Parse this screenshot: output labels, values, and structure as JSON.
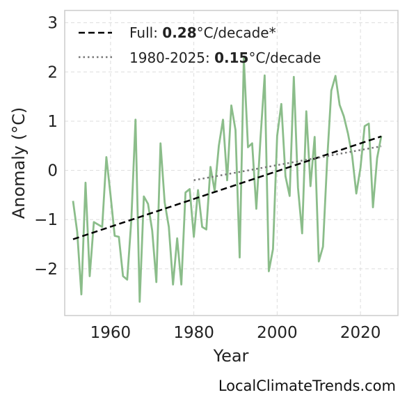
{
  "source": "LocalClimateTrends.com",
  "colors": {
    "series": "#8bbd8a",
    "full_trend": "#000000",
    "recent_trend": "#777777",
    "grid": "#dddddd",
    "frame": "#cccccc"
  },
  "chart_data": {
    "type": "line",
    "title": "",
    "xlabel": "Year",
    "ylabel": "Anomaly (°C)",
    "xlim": [
      1949,
      2029
    ],
    "ylim": [
      -2.95,
      3.25
    ],
    "x_ticks": [
      1960,
      1980,
      2000,
      2020
    ],
    "y_ticks": [
      3,
      2,
      1,
      0,
      -1,
      -2
    ],
    "y_tick_labels": [
      "3",
      "2",
      "1",
      "0",
      "−1",
      "−2"
    ],
    "x_tick_labels": [
      "1960",
      "1980",
      "2000",
      "2020"
    ],
    "grid": true,
    "legend_position": "top-left",
    "series": [
      {
        "style": "solid",
        "x": [
          1951,
          1952,
          1953,
          1954,
          1955,
          1956,
          1957,
          1958,
          1959,
          1960,
          1961,
          1962,
          1963,
          1964,
          1965,
          1966,
          1967,
          1968,
          1969,
          1970,
          1971,
          1972,
          1973,
          1974,
          1975,
          1976,
          1977,
          1978,
          1979,
          1980,
          1981,
          1982,
          1983,
          1984,
          1985,
          1986,
          1987,
          1988,
          1989,
          1990,
          1991,
          1992,
          1993,
          1994,
          1995,
          1996,
          1997,
          1998,
          1999,
          2000,
          2001,
          2002,
          2003,
          2004,
          2005,
          2006,
          2007,
          2008,
          2009,
          2010,
          2011,
          2012,
          2013,
          2014,
          2015,
          2016,
          2017,
          2018,
          2019,
          2020,
          2021,
          2022,
          2023,
          2024,
          2025
        ],
        "y": [
          -0.62,
          -1.25,
          -2.52,
          -0.25,
          -2.15,
          -1.05,
          -1.1,
          -1.15,
          0.27,
          -0.5,
          -1.33,
          -1.35,
          -2.15,
          -2.22,
          -1.0,
          1.03,
          -2.67,
          -0.53,
          -0.68,
          -1.22,
          -2.27,
          0.55,
          -0.65,
          -1.15,
          -2.32,
          -1.38,
          -2.32,
          -0.45,
          -0.38,
          -1.35,
          -0.4,
          -1.15,
          -1.2,
          0.07,
          -0.42,
          0.5,
          1.03,
          -0.2,
          1.32,
          0.82,
          -1.77,
          2.28,
          0.47,
          0.55,
          -0.78,
          0.65,
          1.93,
          -2.05,
          -1.6,
          0.7,
          1.35,
          -0.12,
          -0.52,
          1.9,
          -0.35,
          -1.28,
          1.2,
          -0.32,
          0.68,
          -1.85,
          -1.55,
          0.2,
          1.62,
          1.92,
          1.33,
          1.1,
          0.75,
          0.3,
          -0.47,
          0.05,
          0.9,
          0.95,
          -0.75,
          0.25,
          0.7
        ]
      },
      {
        "name": "Full: |0.28|°C/decade*",
        "style": "dashed",
        "x": [
          1951,
          2025
        ],
        "y": [
          -1.4,
          0.69
        ]
      },
      {
        "name": "1980-2025: |0.15|°C/decade",
        "style": "dotted",
        "x": [
          1980,
          2025
        ],
        "y": [
          -0.2,
          0.49
        ]
      }
    ],
    "legend": [
      {
        "prefix": "Full: ",
        "value": "0.28",
        "suffix": "°C/decade*"
      },
      {
        "prefix": "1980-2025: ",
        "value": "0.15",
        "suffix": "°C/decade"
      }
    ]
  }
}
